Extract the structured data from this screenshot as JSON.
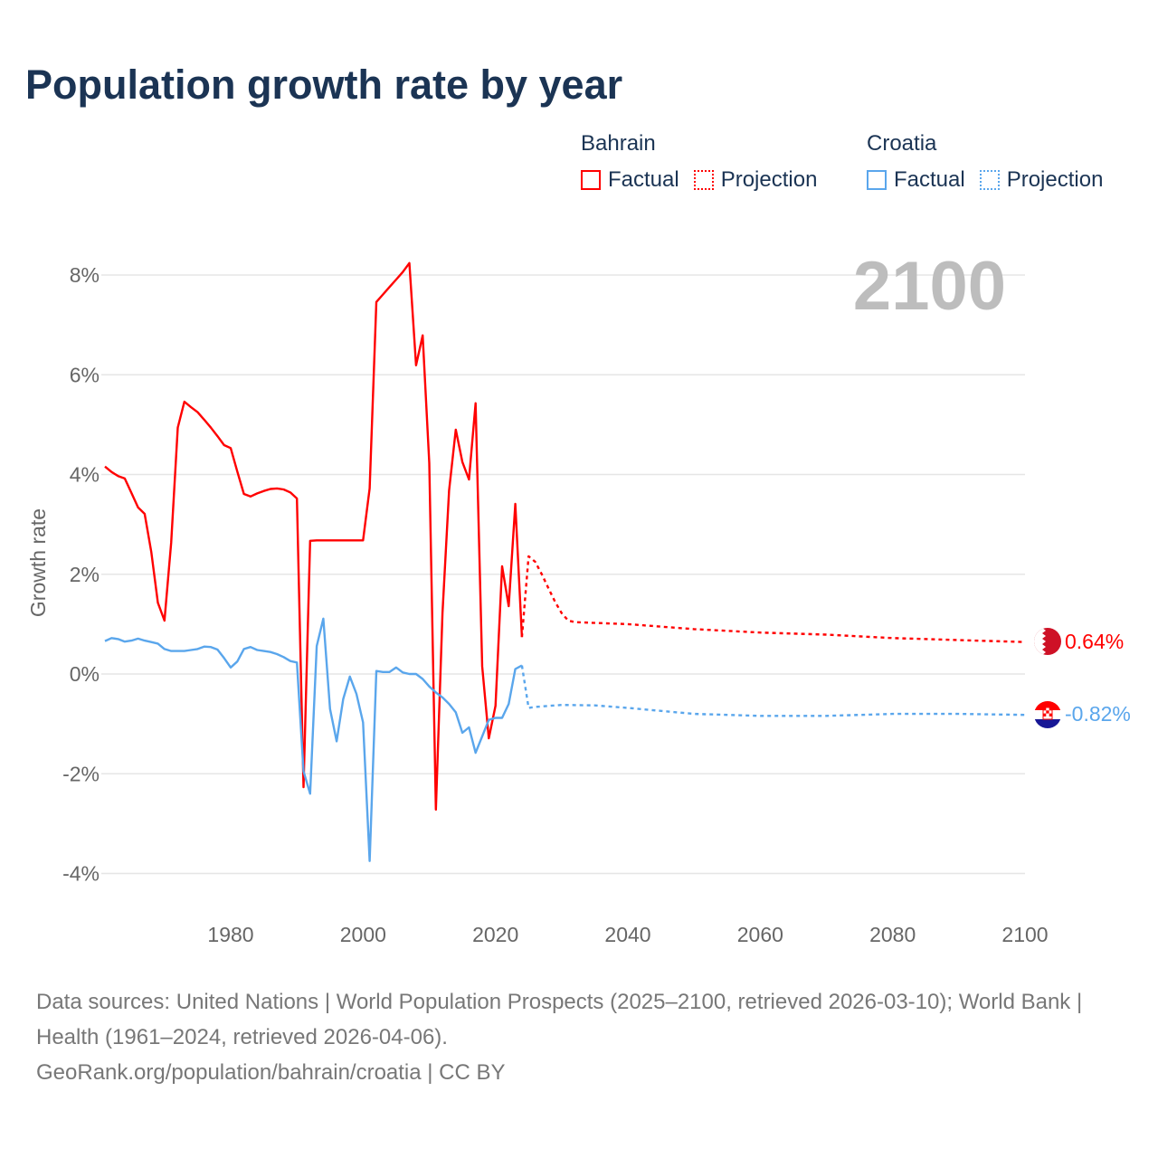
{
  "title": "Population growth rate by year",
  "legend": {
    "groups": [
      {
        "name": "Bahrain",
        "factual": "Factual",
        "projection": "Projection",
        "color": "#ff0000"
      },
      {
        "name": "Croatia",
        "factual": "Factual",
        "projection": "Projection",
        "color": "#5aa6ec"
      }
    ]
  },
  "year_label": "2100",
  "footer": {
    "sources": "Data sources: United Nations | World Population Prospects (2025–2100, retrieved 2026-03-10); World Bank | Health (1961–2024, retrieved 2026-04-06).",
    "credit": "GeoRank.org/population/bahrain/croatia | CC BY"
  },
  "chart_data": {
    "type": "line",
    "title": "Population growth rate by year",
    "xlabel": "",
    "ylabel": "Growth rate",
    "xlim": [
      1961,
      2100
    ],
    "ylim": [
      -4.8,
      8.6
    ],
    "xticks": [
      1980,
      2000,
      2020,
      2040,
      2060,
      2080,
      2100
    ],
    "xtick_labels": [
      "1980",
      "2000",
      "2020",
      "2040",
      "2060",
      "2080",
      "2100"
    ],
    "yticks": [
      8,
      6,
      4,
      2,
      0,
      -2,
      -4
    ],
    "ytick_labels": [
      "8%",
      "6%",
      "4%",
      "2%",
      "0%",
      "-2%",
      "-4%"
    ],
    "grid": true,
    "legend_position": "top-right",
    "series": [
      {
        "name": "Bahrain Factual",
        "country": "Bahrain",
        "style": "solid",
        "color": "#ff0000",
        "x": [
          1961,
          1962,
          1963,
          1964,
          1965,
          1966,
          1967,
          1968,
          1969,
          1970,
          1971,
          1972,
          1973,
          1974,
          1975,
          1976,
          1977,
          1978,
          1979,
          1980,
          1981,
          1982,
          1983,
          1984,
          1985,
          1986,
          1987,
          1988,
          1989,
          1990,
          1991,
          1992,
          1993,
          1994,
          1995,
          1996,
          1997,
          1998,
          1999,
          2000,
          2001,
          2002,
          2003,
          2004,
          2005,
          2006,
          2007,
          2008,
          2009,
          2010,
          2011,
          2012,
          2013,
          2014,
          2015,
          2016,
          2017,
          2018,
          2019,
          2020,
          2021,
          2022,
          2023,
          2024
        ],
        "y": [
          4.16,
          4.05,
          3.97,
          3.92,
          3.63,
          3.34,
          3.21,
          2.45,
          1.43,
          1.07,
          2.63,
          4.94,
          5.46,
          5.35,
          5.25,
          5.1,
          4.94,
          4.77,
          4.59,
          4.53,
          4.06,
          3.61,
          3.56,
          3.62,
          3.67,
          3.71,
          3.72,
          3.7,
          3.64,
          3.52,
          -2.27,
          2.67,
          2.68,
          2.68,
          2.68,
          2.68,
          2.68,
          2.68,
          2.68,
          2.68,
          3.72,
          7.46,
          7.61,
          7.76,
          7.91,
          8.06,
          8.24,
          6.19,
          6.79,
          4.23,
          -2.72,
          1.22,
          3.68,
          4.9,
          4.25,
          3.9,
          5.43,
          0.15,
          -1.29,
          -0.64,
          2.16,
          1.36,
          3.41,
          0.74
        ]
      },
      {
        "name": "Bahrain Projection",
        "country": "Bahrain",
        "style": "dotted",
        "color": "#ff0000",
        "x": [
          2024,
          2025,
          2026,
          2027,
          2028,
          2029,
          2030,
          2031,
          2032,
          2040,
          2050,
          2060,
          2070,
          2080,
          2090,
          2100
        ],
        "y": [
          0.74,
          2.36,
          2.25,
          2.0,
          1.72,
          1.45,
          1.22,
          1.07,
          1.04,
          1.0,
          0.9,
          0.83,
          0.79,
          0.72,
          0.68,
          0.64
        ]
      },
      {
        "name": "Croatia Factual",
        "country": "Croatia",
        "style": "solid",
        "color": "#5aa6ec",
        "x": [
          1961,
          1962,
          1963,
          1964,
          1965,
          1966,
          1967,
          1968,
          1969,
          1970,
          1971,
          1972,
          1973,
          1974,
          1975,
          1976,
          1977,
          1978,
          1979,
          1980,
          1981,
          1982,
          1983,
          1984,
          1985,
          1986,
          1987,
          1988,
          1989,
          1990,
          1991,
          1992,
          1993,
          1994,
          1995,
          1996,
          1997,
          1998,
          1999,
          2000,
          2001,
          2002,
          2003,
          2004,
          2005,
          2006,
          2007,
          2008,
          2009,
          2010,
          2011,
          2012,
          2013,
          2014,
          2015,
          2016,
          2017,
          2018,
          2019,
          2020,
          2021,
          2022,
          2023,
          2024
        ],
        "y": [
          0.66,
          0.72,
          0.7,
          0.65,
          0.67,
          0.71,
          0.67,
          0.64,
          0.61,
          0.5,
          0.46,
          0.46,
          0.46,
          0.48,
          0.5,
          0.55,
          0.54,
          0.49,
          0.32,
          0.13,
          0.25,
          0.5,
          0.54,
          0.48,
          0.46,
          0.44,
          0.4,
          0.34,
          0.26,
          0.23,
          -1.95,
          -2.4,
          0.56,
          1.11,
          -0.7,
          -1.35,
          -0.5,
          -0.05,
          -0.4,
          -0.97,
          -3.75,
          0.06,
          0.04,
          0.04,
          0.13,
          0.03,
          0.0,
          0.0,
          -0.1,
          -0.25,
          -0.37,
          -0.47,
          -0.6,
          -0.77,
          -1.18,
          -1.07,
          -1.58,
          -1.25,
          -0.92,
          -0.88,
          -0.88,
          -0.6,
          0.1,
          0.17
        ]
      },
      {
        "name": "Croatia Projection",
        "country": "Croatia",
        "style": "dotted",
        "color": "#5aa6ec",
        "x": [
          2024,
          2025,
          2026,
          2030,
          2035,
          2040,
          2045,
          2050,
          2060,
          2070,
          2080,
          2090,
          2100
        ],
        "y": [
          0.17,
          -0.68,
          -0.66,
          -0.62,
          -0.63,
          -0.68,
          -0.74,
          -0.8,
          -0.84,
          -0.84,
          -0.8,
          -0.8,
          -0.82
        ]
      }
    ],
    "end_labels": [
      {
        "country": "Bahrain",
        "text": "0.64%",
        "value": 0.64,
        "color": "#ff0000"
      },
      {
        "country": "Croatia",
        "text": "-0.82%",
        "value": -0.82,
        "color": "#5aa6ec"
      }
    ]
  }
}
